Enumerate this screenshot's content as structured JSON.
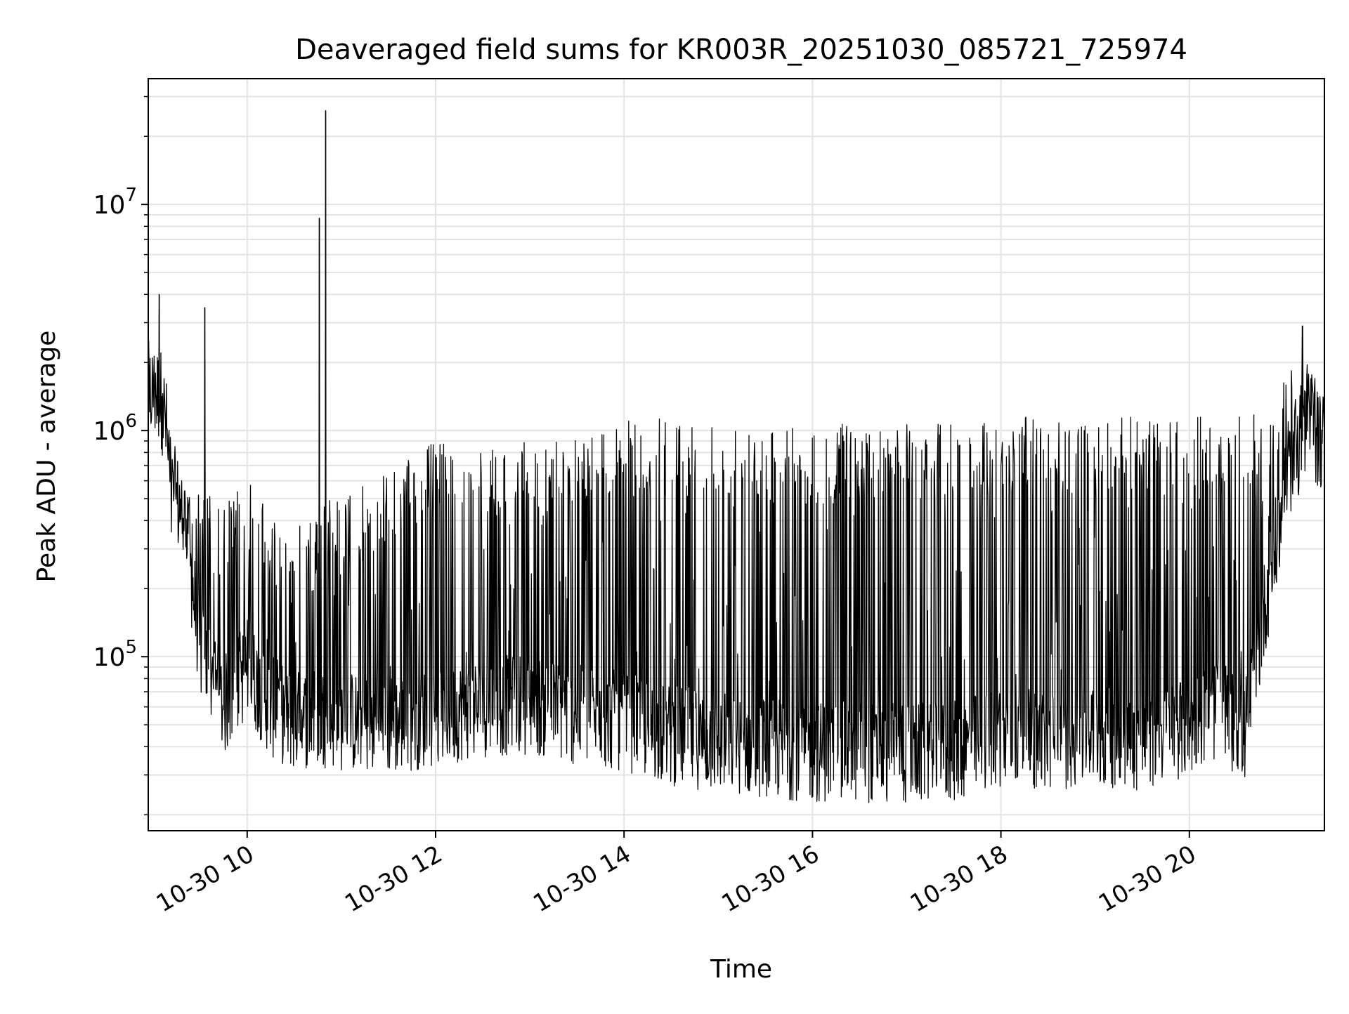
{
  "chart_data": {
    "type": "line",
    "title": "Deaveraged field sums for KR003R_20251030_085721_725974",
    "xlabel": "Time",
    "ylabel": "Peak ADU - average",
    "y_scale": "log",
    "y_ticks": [
      {
        "value": 100000,
        "base": "10",
        "exp": "5"
      },
      {
        "value": 1000000,
        "base": "10",
        "exp": "6"
      },
      {
        "value": 10000000,
        "base": "10",
        "exp": "7"
      }
    ],
    "ylim": [
      17000,
      36000000
    ],
    "x_ticks": [
      {
        "time": "2025-10-30 10:00",
        "label": "10-30 10"
      },
      {
        "time": "2025-10-30 12:00",
        "label": "10-30 12"
      },
      {
        "time": "2025-10-30 14:00",
        "label": "10-30 14"
      },
      {
        "time": "2025-10-30 16:00",
        "label": "10-30 16"
      },
      {
        "time": "2025-10-30 18:00",
        "label": "10-30 18"
      },
      {
        "time": "2025-10-30 20:00",
        "label": "10-30 20"
      }
    ],
    "xlim": [
      "2025-10-30 08:57",
      "2025-10-30 21:26"
    ],
    "grid": true,
    "line_color": "#000000",
    "series": [
      {
        "x": [
          "2025-10-30 08:57",
          "2025-10-30 09:05",
          "2025-10-30 09:08",
          "2025-10-30 09:12",
          "2025-10-30 09:20",
          "2025-10-30 09:30",
          "2025-10-30 09:45",
          "2025-10-30 10:00",
          "2025-10-30 10:15",
          "2025-10-30 10:30",
          "2025-10-30 10:45",
          "2025-10-30 11:00",
          "2025-10-30 11:30",
          "2025-10-30 12:00",
          "2025-10-30 12:30",
          "2025-10-30 13:00",
          "2025-10-30 13:30",
          "2025-10-30 14:00",
          "2025-10-30 14:30",
          "2025-10-30 15:00",
          "2025-10-30 15:30",
          "2025-10-30 16:00",
          "2025-10-30 16:30",
          "2025-10-30 17:00",
          "2025-10-30 17:30",
          "2025-10-30 18:00",
          "2025-10-30 18:30",
          "2025-10-30 19:00",
          "2025-10-30 19:30",
          "2025-10-30 20:00",
          "2025-10-30 20:20",
          "2025-10-30 20:35",
          "2025-10-30 20:50",
          "2025-10-30 21:05",
          "2025-10-30 21:15",
          "2025-10-30 21:26"
        ],
        "baseline": [
          1500000,
          1400000,
          1100000,
          550000,
          400000,
          110000,
          60000,
          90000,
          60000,
          52000,
          55000,
          52000,
          50000,
          55000,
          60000,
          62000,
          55000,
          52000,
          45000,
          42000,
          40000,
          38000,
          38000,
          37000,
          38000,
          45000,
          42000,
          45000,
          42000,
          50000,
          60000,
          45000,
          200000,
          700000,
          1000000,
          900000
        ],
        "peak_envelope": [
          2500000,
          2200000,
          1900000,
          700000,
          600000,
          550000,
          500000,
          600000,
          450000,
          400000,
          500000,
          500000,
          700000,
          900000,
          800000,
          900000,
          1000000,
          1100000,
          1150000,
          1100000,
          1100000,
          1050000,
          1100000,
          1100000,
          1100000,
          1150000,
          1150000,
          1150000,
          1150000,
          1150000,
          1150000,
          1200000,
          1200000,
          2000000,
          2200000,
          1600000
        ]
      }
    ],
    "notable_spikes": [
      {
        "x": "2025-10-30 09:04",
        "y": 4000000
      },
      {
        "x": "2025-10-30 09:33",
        "y": 3500000
      },
      {
        "x": "2025-10-30 10:46",
        "y": 8700000
      },
      {
        "x": "2025-10-30 10:50",
        "y": 26000000
      },
      {
        "x": "2025-10-30 21:12",
        "y": 2900000
      }
    ]
  }
}
